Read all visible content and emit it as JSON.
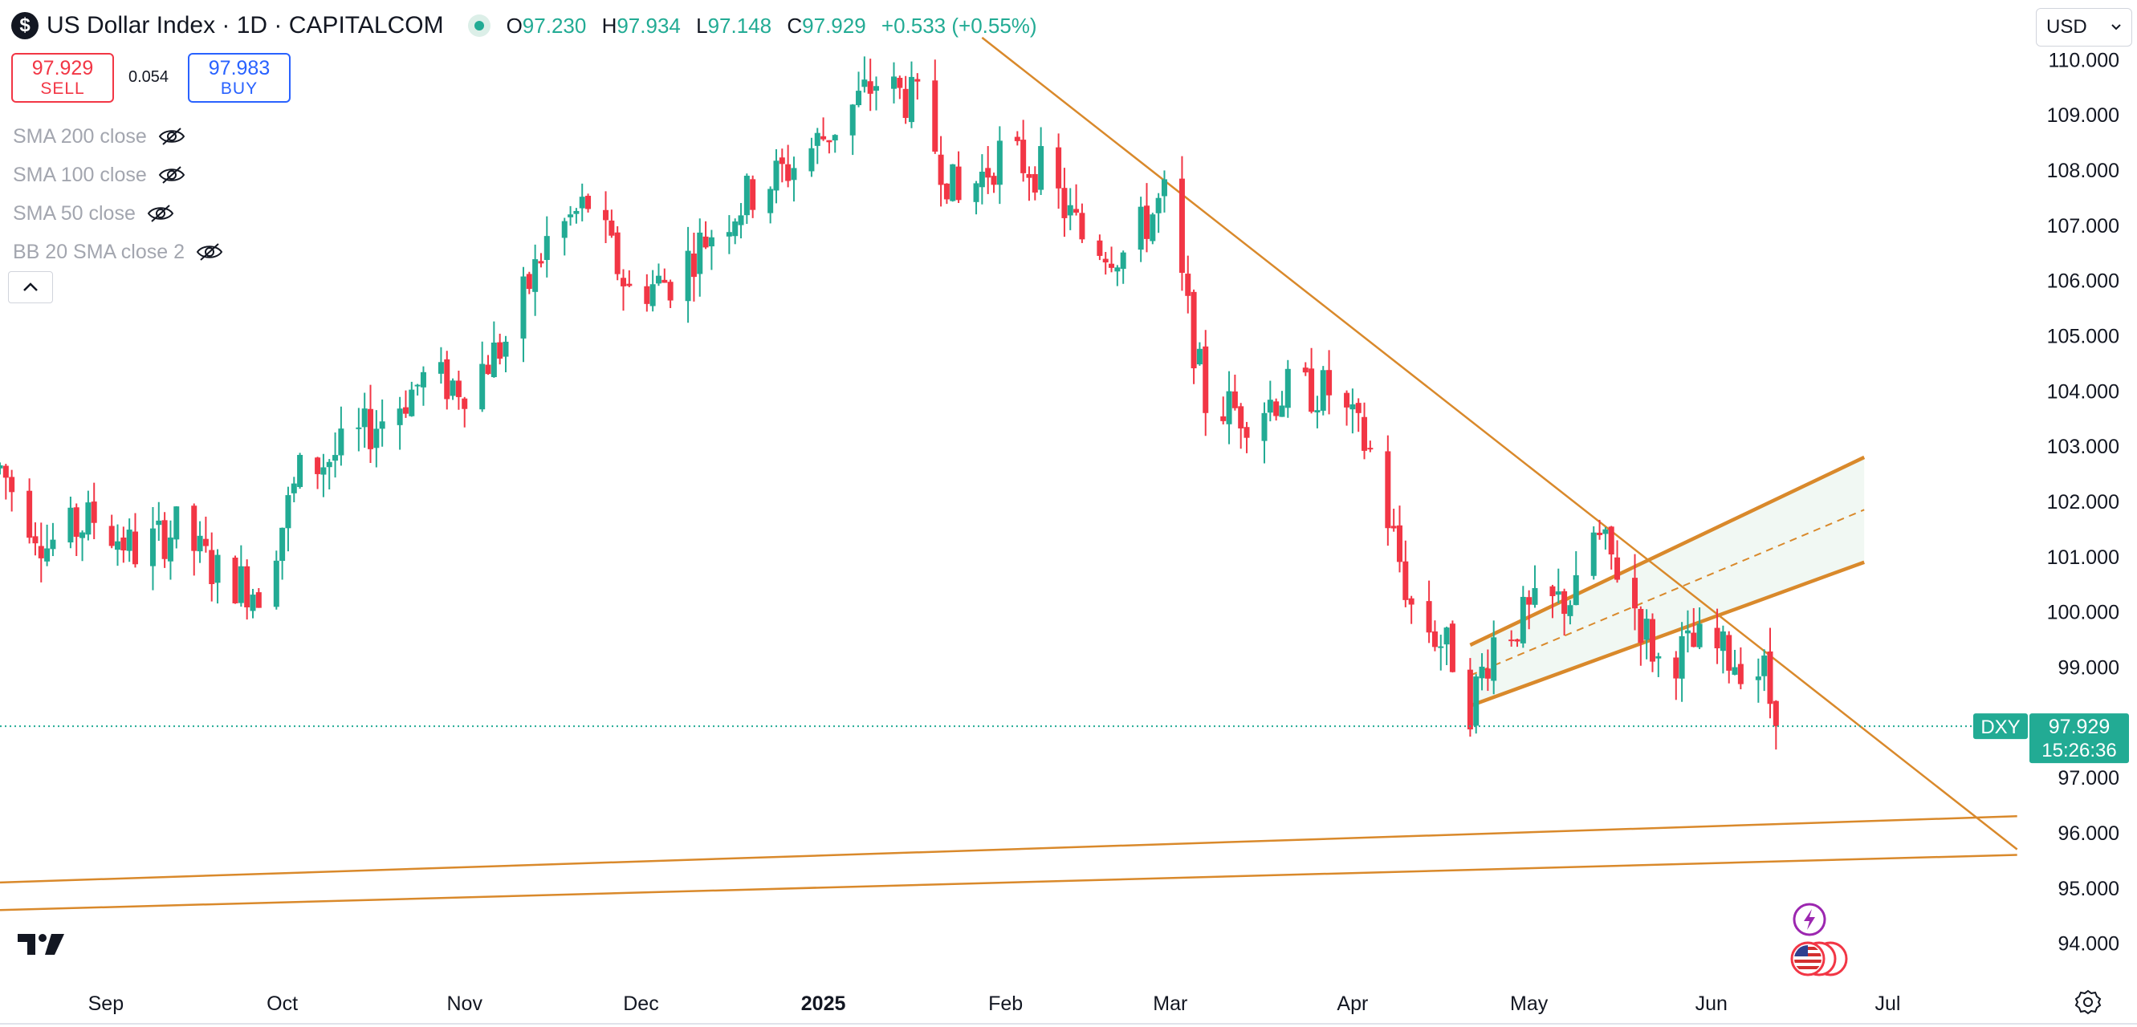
{
  "header": {
    "logo_glyph": "$",
    "symbol_title": "US Dollar Index · 1D · CAPITALCOM",
    "ohlc": {
      "open_key": "O",
      "open": "97.230",
      "high_key": "H",
      "high": "97.934",
      "low_key": "L",
      "low": "97.148",
      "close_key": "C",
      "close": "97.929",
      "change": "+0.533 (+0.55%)"
    }
  },
  "trade": {
    "sell_price": "97.929",
    "sell_label": "SELL",
    "spread": "0.054",
    "buy_price": "97.983",
    "buy_label": "BUY"
  },
  "indicators": [
    {
      "label": "SMA 200 close",
      "icon": "eye-off-icon"
    },
    {
      "label": "SMA 100 close",
      "icon": "eye-off-icon"
    },
    {
      "label": "SMA 50 close",
      "icon": "eye-off-icon"
    },
    {
      "label": "BB 20 SMA close 2",
      "icon": "eye-off-icon"
    }
  ],
  "currency": {
    "value": "USD"
  },
  "last_price": {
    "symbol": "DXY",
    "price": "97.929",
    "countdown": "15:26:36",
    "value": 97.929
  },
  "colors": {
    "up": "#22ab94",
    "down": "#f23645",
    "trendline": "#d9892b",
    "channel_fill": "#f1f8f3",
    "text": "#131722",
    "axis_text": "#131722"
  },
  "chart_data": {
    "type": "candlestick",
    "y_axis": {
      "min": 93.5,
      "max": 110.5,
      "ticks": [
        94,
        95,
        96,
        97,
        98,
        99,
        100,
        101,
        102,
        103,
        104,
        105,
        106,
        107,
        108,
        109,
        110
      ],
      "tick_labels": [
        "94.000",
        "95.000",
        "96.000",
        "97.000",
        "98.000",
        "99.000",
        "100.000",
        "101.000",
        "102.000",
        "103.000",
        "104.000",
        "105.000",
        "106.000",
        "107.000",
        "108.000",
        "109.000",
        "110.000"
      ]
    },
    "x_axis": {
      "start": "2024-08-14",
      "end": "2025-07-24",
      "labels": [
        {
          "date": "2024-09-01",
          "label": "Sep"
        },
        {
          "date": "2024-10-01",
          "label": "Oct"
        },
        {
          "date": "2024-11-01",
          "label": "Nov"
        },
        {
          "date": "2024-12-01",
          "label": "Dec"
        },
        {
          "date": "2025-01-01",
          "label": "2025"
        },
        {
          "date": "2025-02-01",
          "label": "Feb"
        },
        {
          "date": "2025-03-01",
          "label": "Mar"
        },
        {
          "date": "2025-04-01",
          "label": "Apr"
        },
        {
          "date": "2025-05-01",
          "label": "May"
        },
        {
          "date": "2025-06-01",
          "label": "Jun"
        },
        {
          "date": "2025-07-01",
          "label": "Jul"
        }
      ]
    },
    "close_series": [
      [
        "2024-08-14",
        102.6
      ],
      [
        "2024-08-22",
        101.2
      ],
      [
        "2024-08-30",
        101.7
      ],
      [
        "2024-09-06",
        101.1
      ],
      [
        "2024-09-13",
        101.5
      ],
      [
        "2024-09-20",
        100.7
      ],
      [
        "2024-09-27",
        100.4
      ],
      [
        "2024-10-04",
        102.5
      ],
      [
        "2024-10-11",
        102.9
      ],
      [
        "2024-10-18",
        103.5
      ],
      [
        "2024-10-25",
        104.2
      ],
      [
        "2024-11-01",
        104.1
      ],
      [
        "2024-11-08",
        104.9
      ],
      [
        "2024-11-15",
        106.7
      ],
      [
        "2024-11-22",
        107.4
      ],
      [
        "2024-11-29",
        105.8
      ],
      [
        "2024-12-06",
        106.0
      ],
      [
        "2024-12-13",
        106.9
      ],
      [
        "2024-12-20",
        107.6
      ],
      [
        "2024-12-27",
        108.1
      ],
      [
        "2025-01-03",
        108.8
      ],
      [
        "2025-01-10",
        109.6
      ],
      [
        "2025-01-17",
        109.2
      ],
      [
        "2025-01-24",
        107.4
      ],
      [
        "2025-01-31",
        108.3
      ],
      [
        "2025-02-07",
        108.0
      ],
      [
        "2025-02-14",
        106.8
      ],
      [
        "2025-02-21",
        106.5
      ],
      [
        "2025-02-28",
        107.5
      ],
      [
        "2025-03-07",
        103.8
      ],
      [
        "2025-03-14",
        103.6
      ],
      [
        "2025-03-21",
        104.0
      ],
      [
        "2025-03-28",
        104.0
      ],
      [
        "2025-04-04",
        102.9
      ],
      [
        "2025-04-11",
        100.1
      ],
      [
        "2025-04-18",
        99.2
      ],
      [
        "2025-04-21",
        98.3
      ],
      [
        "2025-04-25",
        99.5
      ],
      [
        "2025-05-02",
        100.0
      ],
      [
        "2025-05-09",
        100.3
      ],
      [
        "2025-05-12",
        101.4
      ],
      [
        "2025-05-16",
        100.8
      ],
      [
        "2025-05-23",
        99.1
      ],
      [
        "2025-05-30",
        99.4
      ],
      [
        "2025-06-06",
        99.1
      ],
      [
        "2025-06-10",
        98.9
      ],
      [
        "2025-06-12",
        97.9
      ]
    ],
    "trendlines": [
      {
        "name": "descending-resistance",
        "points": [
          [
            "2025-01-28",
            110.4
          ],
          [
            "2025-07-23",
            95.7
          ]
        ]
      },
      {
        "name": "support-upper",
        "points": [
          [
            "2024-08-14",
            95.1
          ],
          [
            "2025-07-23",
            96.3
          ]
        ]
      },
      {
        "name": "support-lower",
        "points": [
          [
            "2024-08-14",
            94.6
          ],
          [
            "2025-07-23",
            95.6
          ]
        ]
      }
    ],
    "channel": {
      "upper": [
        [
          "2025-04-21",
          99.4
        ],
        [
          "2025-06-27",
          102.8
        ]
      ],
      "middle": [
        [
          "2025-04-21",
          98.85
        ],
        [
          "2025-06-27",
          101.85
        ]
      ],
      "lower": [
        [
          "2025-04-21",
          98.3
        ],
        [
          "2025-06-27",
          100.9
        ]
      ]
    }
  }
}
